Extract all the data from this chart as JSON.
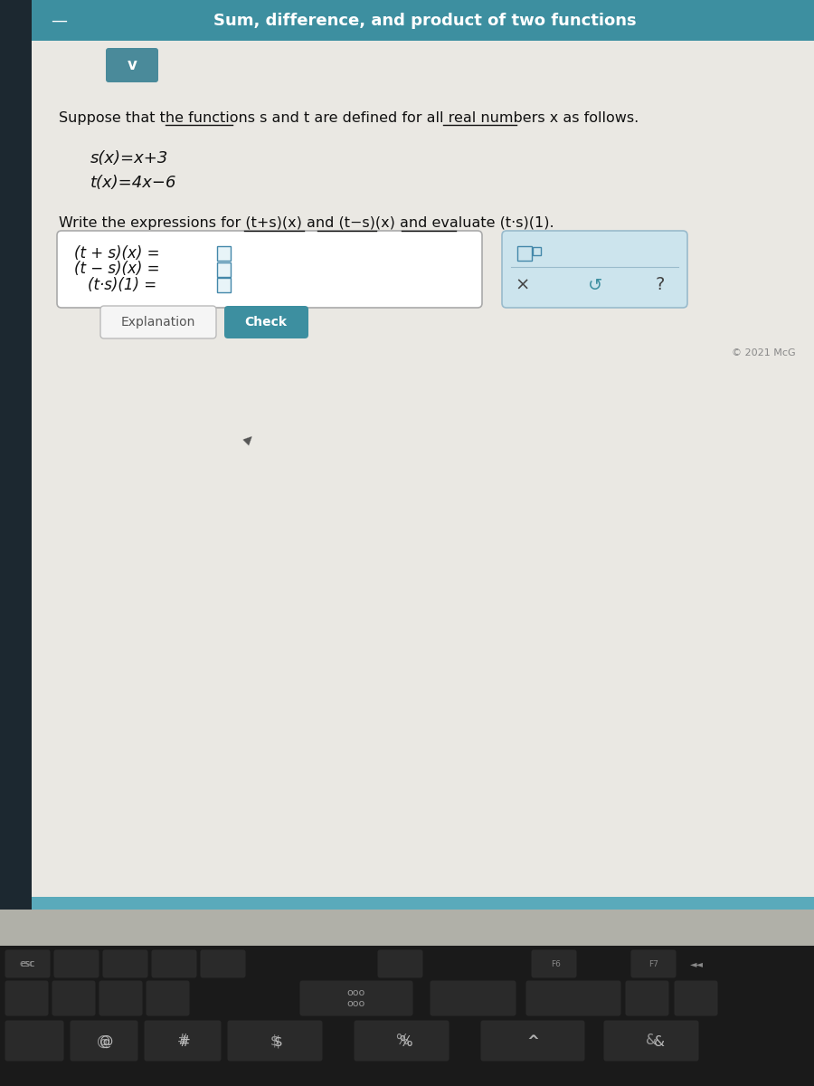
{
  "title": "Sum, difference, and product of two functions",
  "title_bg": "#3d8fa0",
  "title_color": "#ffffff",
  "screen_bg_top": "#1a2a35",
  "screen_content_bg": "#eeecea",
  "intro_line": "Suppose that the functions s and t are defined for all real numbers x as follows.",
  "func_s": "s(x)=x+3",
  "func_t": "t(x)=4x−6",
  "instruction": "Write the expressions for (t+s)(x) and (t−s)(x) and evaluate (t·s)(1).",
  "expr1_left": "(t + s)(x) = ",
  "expr2_left": "(t − s)(x) = ",
  "expr3_left": "(t·s)(1) = ",
  "box_border": "#aaaaaa",
  "box_bg": "#ffffff",
  "right_box_bg": "#cce4ed",
  "right_box_border": "#99bbcc",
  "button_explanation_text": "Explanation",
  "button_check_bg": "#3d8fa0",
  "button_check_text": "Check",
  "copyright": "© 2021 McG",
  "chevron_bg": "#4a8a9a",
  "chevron_color": "#ffffff",
  "teal_bar": "#5aaabb",
  "left_dark_col": "#1c2830",
  "laptop_body": "#2a2a2a",
  "key_bg": "#282828",
  "key_border": "#444444",
  "key_label": "#aaaaaa",
  "bottom_bar_bg": "#c8c8c0"
}
